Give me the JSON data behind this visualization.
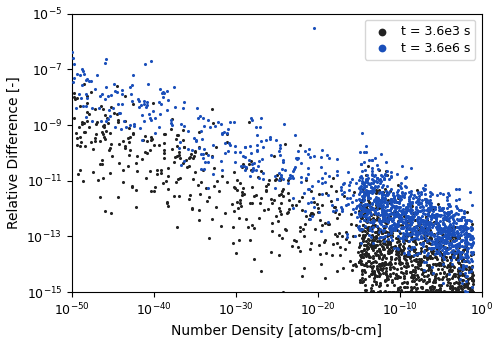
{
  "xlabel": "Number Density [atoms/b-cm]",
  "ylabel": "Relative Difference [-]",
  "xlim_log": [
    -50,
    0
  ],
  "ylim_log": [
    -15,
    -5
  ],
  "color_t1": "#222222",
  "color_t2": "#1a4fba",
  "legend_t1": "t = 3.6e3 s",
  "legend_t2": "t = 3.6e6 s",
  "marker_size": 5,
  "seed": 42,
  "n_points": 1450,
  "figsize": [
    5.0,
    3.45
  ],
  "dpi": 100,
  "xticks": [
    -50,
    -40,
    -30,
    -20,
    -10,
    0
  ],
  "yticks": [
    -15,
    -13,
    -11,
    -9,
    -7,
    -5
  ]
}
